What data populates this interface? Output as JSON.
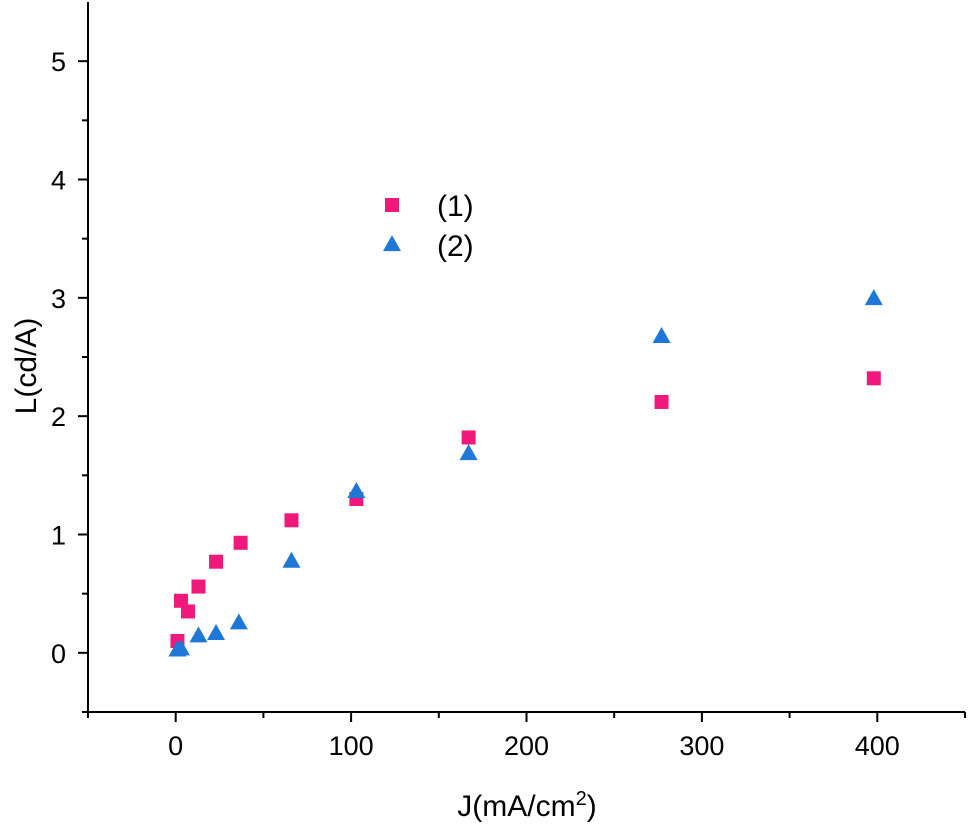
{
  "chart_data": {
    "type": "scatter",
    "title": "",
    "xlabel_prefix": "J(mA/cm",
    "xlabel_sup": "2",
    "xlabel_suffix": ")",
    "ylabel": "L(cd/A)",
    "xlim": [
      -50,
      450
    ],
    "ylim": [
      -0.5,
      5.5
    ],
    "xticks": [
      0,
      100,
      200,
      300,
      400
    ],
    "xtick_labels": [
      "0",
      "100",
      "200",
      "300",
      "400"
    ],
    "xminor": [
      -50,
      50,
      150,
      250,
      350,
      450
    ],
    "yticks": [
      0,
      1,
      2,
      3,
      4,
      5
    ],
    "ytick_labels": [
      "0",
      "1",
      "2",
      "3",
      "4",
      "5"
    ],
    "yminor": [
      -0.5,
      0.5,
      1.5,
      2.5,
      3.5,
      4.5
    ],
    "grid": false,
    "legend_position": "upper-center",
    "series": [
      {
        "name": "(1)",
        "marker": "square",
        "color": "#f0187a",
        "points": [
          [
            1,
            0.1
          ],
          [
            3,
            0.44
          ],
          [
            7,
            0.35
          ],
          [
            13,
            0.56
          ],
          [
            23,
            0.77
          ],
          [
            37,
            0.93
          ],
          [
            66,
            1.12
          ],
          [
            103,
            1.3
          ],
          [
            167,
            1.82
          ],
          [
            277,
            2.12
          ],
          [
            398,
            2.32
          ]
        ]
      },
      {
        "name": "(2)",
        "marker": "triangle",
        "color": "#1f78d8",
        "points": [
          [
            1,
            0.02
          ],
          [
            3,
            0.03
          ],
          [
            13,
            0.14
          ],
          [
            23,
            0.16
          ],
          [
            36,
            0.25
          ],
          [
            66,
            0.77
          ],
          [
            103,
            1.36
          ],
          [
            167,
            1.68
          ],
          [
            277,
            2.67
          ],
          [
            398,
            2.99
          ]
        ]
      }
    ]
  }
}
